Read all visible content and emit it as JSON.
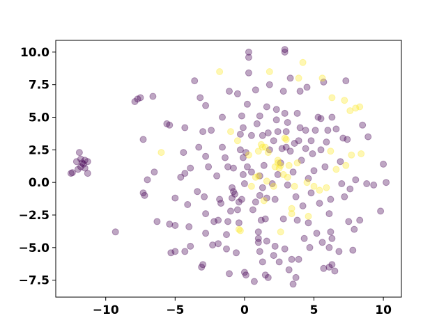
{
  "chart_data": {
    "type": "scatter",
    "title": "",
    "xlabel": "",
    "ylabel": "",
    "xlim": [
      -13.6,
      11.3
    ],
    "ylim": [
      -8.8,
      10.9
    ],
    "grid": false,
    "xticks": [
      -10,
      -5,
      0,
      5,
      10
    ],
    "yticks": [
      -7.5,
      -5.0,
      -2.5,
      0.0,
      2.5,
      5.0,
      7.5,
      10.0
    ],
    "xtick_labels": [
      "−10",
      "−5",
      "0",
      "5",
      "10"
    ],
    "ytick_labels": [
      "−7.5",
      "−5.0",
      "−2.5",
      "0.0",
      "2.5",
      "5.0",
      "7.5",
      "10.0"
    ],
    "colors": {
      "class_0": "#440154",
      "class_1": "#fde725"
    },
    "series": [
      {
        "values": [
          [
            -12.5,
            0.7
          ],
          [
            -12.4,
            0.75
          ],
          [
            -12.1,
            1.6
          ],
          [
            -11.9,
            2.3
          ],
          [
            -11.8,
            1.2
          ],
          [
            -11.7,
            1.5
          ],
          [
            -11.6,
            1.4
          ],
          [
            -11.5,
            1.7
          ],
          [
            -11.5,
            1.1
          ],
          [
            -11.3,
            1.6
          ],
          [
            -11.3,
            0.7
          ],
          [
            -12.0,
            1.0
          ],
          [
            -11.8,
            1.8
          ],
          [
            -9.3,
            -3.8
          ],
          [
            -7.9,
            6.2
          ],
          [
            -7.7,
            6.4
          ],
          [
            -7.5,
            6.5
          ],
          [
            -7.3,
            3.3
          ],
          [
            -7.3,
            -0.8
          ],
          [
            -7.2,
            -1.0
          ],
          [
            -7.0,
            0.2
          ],
          [
            -6.6,
            6.6
          ],
          [
            -6.5,
            0.8
          ],
          [
            -6.3,
            -3.0
          ],
          [
            -5.6,
            4.5
          ],
          [
            -5.4,
            4.4
          ],
          [
            -5.4,
            -3.2
          ],
          [
            -5.3,
            -5.4
          ],
          [
            -5.0,
            -1.2
          ],
          [
            -5.0,
            -5.3
          ],
          [
            -5.0,
            -3.3
          ],
          [
            -4.6,
            0.4
          ],
          [
            -4.4,
            2.3
          ],
          [
            -4.3,
            4.2
          ],
          [
            -4.3,
            -5.3
          ],
          [
            -4.3,
            0.7
          ],
          [
            -4.1,
            -1.7
          ],
          [
            -4.0,
            -3.4
          ],
          [
            -3.9,
            -4.9
          ],
          [
            -3.9,
            1.1
          ],
          [
            -3.6,
            7.8
          ],
          [
            -3.4,
            -0.7
          ],
          [
            -3.3,
            2.7
          ],
          [
            -3.2,
            6.5
          ],
          [
            -3.1,
            -6.5
          ],
          [
            -3.0,
            -6.3
          ],
          [
            -3.0,
            3.9
          ],
          [
            -2.9,
            -1.1
          ],
          [
            -2.8,
            -2.4
          ],
          [
            -2.8,
            -3.9
          ],
          [
            -2.8,
            2.0
          ],
          [
            -2.8,
            5.9
          ],
          [
            -2.6,
            1.2
          ],
          [
            -2.4,
            4.0
          ],
          [
            -2.3,
            -4.8
          ],
          [
            -2.2,
            -3.0
          ],
          [
            -2.0,
            0.5
          ],
          [
            -1.9,
            -2.9
          ],
          [
            -1.9,
            -4.7
          ],
          [
            -1.8,
            -1.3
          ],
          [
            -1.7,
            -1.6
          ],
          [
            -1.6,
            5.0
          ],
          [
            -1.6,
            2.7
          ],
          [
            -1.4,
            1.9
          ],
          [
            -1.3,
            -5.1
          ],
          [
            -1.3,
            -4.0
          ],
          [
            -1.2,
            1.2
          ],
          [
            -1.2,
            -3.0
          ],
          [
            -1.1,
            7.0
          ],
          [
            -1.1,
            -7.0
          ],
          [
            -1.0,
            -2.2
          ],
          [
            -0.9,
            -1.2
          ],
          [
            -0.9,
            -0.4
          ],
          [
            -0.8,
            -0.7
          ],
          [
            -0.8,
            1.1
          ],
          [
            -0.7,
            -0.9
          ],
          [
            -0.6,
            -5.4
          ],
          [
            -0.5,
            6.8
          ],
          [
            -0.5,
            -2.1
          ],
          [
            -0.4,
            -1.5
          ],
          [
            -0.4,
            -3.1
          ],
          [
            -0.3,
            2.5
          ],
          [
            -0.3,
            3.7
          ],
          [
            -0.2,
            -1.3
          ],
          [
            -0.2,
            5.1
          ],
          [
            -0.1,
            4.2
          ],
          [
            -0.1,
            1.9
          ],
          [
            -0.1,
            0.6
          ],
          [
            0.0,
            -6.9
          ],
          [
            0.0,
            -0.1
          ],
          [
            0.1,
            -7.1
          ],
          [
            0.1,
            2.3
          ],
          [
            0.2,
            6.0
          ],
          [
            0.2,
            1.2
          ],
          [
            0.3,
            8.4
          ],
          [
            0.3,
            9.6
          ],
          [
            0.3,
            10.0
          ],
          [
            0.5,
            3.6
          ],
          [
            0.5,
            0.8
          ],
          [
            0.6,
            -2.1
          ],
          [
            0.7,
            -7.6
          ],
          [
            0.8,
            7.1
          ],
          [
            0.8,
            -1.5
          ],
          [
            0.9,
            4.5
          ],
          [
            1.0,
            -4.3
          ],
          [
            1.0,
            -3.8
          ],
          [
            1.0,
            -4.6
          ],
          [
            1.1,
            0.5
          ],
          [
            1.1,
            -1.0
          ],
          [
            1.1,
            -5.3
          ],
          [
            1.1,
            5.1
          ],
          [
            1.2,
            -2.9
          ],
          [
            1.3,
            -0.4
          ],
          [
            1.3,
            3.6
          ],
          [
            1.3,
            -6.1
          ],
          [
            1.4,
            1.3
          ],
          [
            1.5,
            -7.1
          ],
          [
            1.5,
            -2.8
          ],
          [
            1.6,
            -1.2
          ],
          [
            1.6,
            -4.5
          ],
          [
            1.6,
            5.8
          ],
          [
            1.7,
            -7.3
          ],
          [
            1.7,
            3.8
          ],
          [
            1.8,
            2.5
          ],
          [
            1.8,
            7.5
          ],
          [
            2.0,
            -0.1
          ],
          [
            2.1,
            3.2
          ],
          [
            2.1,
            -5.6
          ],
          [
            2.2,
            -4.9
          ],
          [
            2.2,
            -1.3
          ],
          [
            2.3,
            5.6
          ],
          [
            2.3,
            4.8
          ],
          [
            2.4,
            3.9
          ],
          [
            2.4,
            0.6
          ],
          [
            2.5,
            -6.1
          ],
          [
            2.6,
            1.5
          ],
          [
            2.7,
            2.6
          ],
          [
            2.8,
            7.0
          ],
          [
            2.8,
            -2.8
          ],
          [
            2.9,
            5.3
          ],
          [
            2.9,
            -5.1
          ],
          [
            2.9,
            10.0
          ],
          [
            2.9,
            10.2
          ],
          [
            3.0,
            2.7
          ],
          [
            3.0,
            3.9
          ],
          [
            3.1,
            -0.2
          ],
          [
            3.1,
            4.6
          ],
          [
            3.2,
            -6.7
          ],
          [
            3.3,
            2.4
          ],
          [
            3.3,
            8.0
          ],
          [
            3.4,
            -5.9
          ],
          [
            3.5,
            -7.8
          ],
          [
            3.5,
            0.8
          ],
          [
            3.6,
            3.0
          ],
          [
            3.7,
            -1.1
          ],
          [
            3.7,
            -7.3
          ],
          [
            3.8,
            -2.9
          ],
          [
            3.8,
            5.3
          ],
          [
            3.9,
            3.2
          ],
          [
            3.9,
            -5.9
          ],
          [
            4.0,
            4.2
          ],
          [
            4.0,
            7.0
          ],
          [
            4.1,
            1.7
          ],
          [
            4.2,
            -1.8
          ],
          [
            4.3,
            -4.3
          ],
          [
            4.4,
            2.6
          ],
          [
            4.4,
            4.0
          ],
          [
            4.5,
            7.3
          ],
          [
            4.6,
            -3.1
          ],
          [
            4.6,
            0.3
          ],
          [
            4.7,
            -5.0
          ],
          [
            4.8,
            -0.8
          ],
          [
            4.8,
            3.2
          ],
          [
            4.9,
            2.2
          ],
          [
            5.0,
            0.9
          ],
          [
            5.1,
            4.0
          ],
          [
            5.2,
            -3.9
          ],
          [
            5.3,
            5.0
          ],
          [
            5.4,
            -1.6
          ],
          [
            5.5,
            2.5
          ],
          [
            5.5,
            4.9
          ],
          [
            5.6,
            -4.6
          ],
          [
            5.7,
            -6.6
          ],
          [
            5.7,
            7.7
          ],
          [
            5.8,
            1.2
          ],
          [
            5.9,
            3.1
          ],
          [
            6.0,
            4.0
          ],
          [
            6.1,
            -6.5
          ],
          [
            6.1,
            -2.4
          ],
          [
            6.1,
            -5.0
          ],
          [
            6.2,
            -1.3
          ],
          [
            6.2,
            -3.8
          ],
          [
            6.3,
            -4.3
          ],
          [
            6.3,
            -6.3
          ],
          [
            6.3,
            5.0
          ],
          [
            6.5,
            -6.8
          ],
          [
            6.6,
            4.1
          ],
          [
            6.8,
            -5.3
          ],
          [
            6.9,
            1.6
          ],
          [
            7.0,
            -0.1
          ],
          [
            7.1,
            3.4
          ],
          [
            7.2,
            -1.1
          ],
          [
            7.3,
            7.8
          ],
          [
            7.4,
            3.3
          ],
          [
            7.5,
            -3.0
          ],
          [
            7.6,
            -0.5
          ],
          [
            7.8,
            -5.2
          ],
          [
            7.9,
            -3.6
          ],
          [
            8.0,
            0.2
          ],
          [
            8.3,
            -2.9
          ],
          [
            8.5,
            4.4
          ],
          [
            8.8,
            -0.1
          ],
          [
            8.9,
            3.5
          ],
          [
            9.3,
            -0.2
          ],
          [
            9.8,
            -2.2
          ],
          [
            10.0,
            1.4
          ],
          [
            10.2,
            0.0
          ]
        ]
      },
      {
        "values": [
          [
            -6.0,
            2.3
          ],
          [
            -1.8,
            8.5
          ],
          [
            -1.0,
            3.9
          ],
          [
            -0.5,
            3.2
          ],
          [
            -0.4,
            -3.6
          ],
          [
            -0.3,
            -3.7
          ],
          [
            0.3,
            2.1
          ],
          [
            0.5,
            -0.3
          ],
          [
            0.8,
            0.4
          ],
          [
            1.0,
            2.4
          ],
          [
            1.0,
            0.5
          ],
          [
            1.2,
            2.9
          ],
          [
            1.3,
            2.7
          ],
          [
            1.4,
            -1.4
          ],
          [
            1.5,
            2.7
          ],
          [
            1.6,
            0.1
          ],
          [
            1.7,
            2.3
          ],
          [
            1.8,
            8.5
          ],
          [
            2.1,
            -0.3
          ],
          [
            2.2,
            1.2
          ],
          [
            2.4,
            1.7
          ],
          [
            2.4,
            1.5
          ],
          [
            2.5,
            1.1
          ],
          [
            2.6,
            -3.8
          ],
          [
            2.6,
            1.3
          ],
          [
            2.8,
            0.6
          ],
          [
            2.9,
            3.4
          ],
          [
            3.0,
            3.3
          ],
          [
            3.1,
            0.4
          ],
          [
            3.2,
            1.3
          ],
          [
            3.4,
            -2.0
          ],
          [
            3.4,
            -2.4
          ],
          [
            3.6,
            -0.3
          ],
          [
            3.8,
            1.5
          ],
          [
            3.9,
            8.0
          ],
          [
            4.2,
            9.2
          ],
          [
            4.5,
            0.0
          ],
          [
            4.6,
            -2.6
          ],
          [
            5.0,
            -0.3
          ],
          [
            5.4,
            -0.6
          ],
          [
            5.6,
            8.0
          ],
          [
            5.9,
            -0.4
          ],
          [
            6.2,
            2.4
          ],
          [
            6.3,
            6.5
          ],
          [
            6.6,
            1.0
          ],
          [
            7.2,
            6.3
          ],
          [
            7.3,
            1.3
          ],
          [
            7.6,
            5.5
          ],
          [
            7.7,
            2.1
          ],
          [
            8.0,
            5.7
          ],
          [
            8.3,
            5.8
          ],
          [
            8.4,
            2.2
          ]
        ]
      }
    ]
  }
}
